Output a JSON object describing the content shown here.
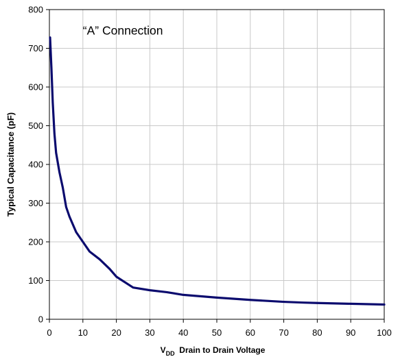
{
  "chart_data": {
    "type": "line",
    "title": "",
    "annotation": "“A” Connection",
    "xlabel": {
      "prefix": "V",
      "subscript": "DD",
      "suffix": "  Drain to Drain Voltage"
    },
    "ylabel": "Typical Capacitance (pF)",
    "xlim": [
      0,
      100
    ],
    "ylim": [
      0,
      800
    ],
    "x_ticks": [
      "0",
      "10",
      "20",
      "30",
      "40",
      "50",
      "60",
      "70",
      "80",
      "90",
      "100"
    ],
    "y_ticks": [
      "0",
      "100",
      "200",
      "300",
      "400",
      "500",
      "600",
      "700",
      "800"
    ],
    "grid": true,
    "legend": "none",
    "series": [
      {
        "color": "#0b0b6e",
        "x": [
          0.2,
          0.6,
          1,
          1.5,
          2,
          3,
          4,
          5,
          6,
          8,
          10,
          12,
          15,
          18,
          20,
          25,
          30,
          35,
          40,
          50,
          60,
          70,
          76,
          80,
          90,
          100
        ],
        "y": [
          728,
          650,
          560,
          480,
          430,
          380,
          340,
          290,
          265,
          225,
          200,
          175,
          155,
          130,
          110,
          82,
          75,
          70,
          63,
          56,
          50,
          45,
          43,
          42,
          40,
          38
        ]
      }
    ]
  }
}
